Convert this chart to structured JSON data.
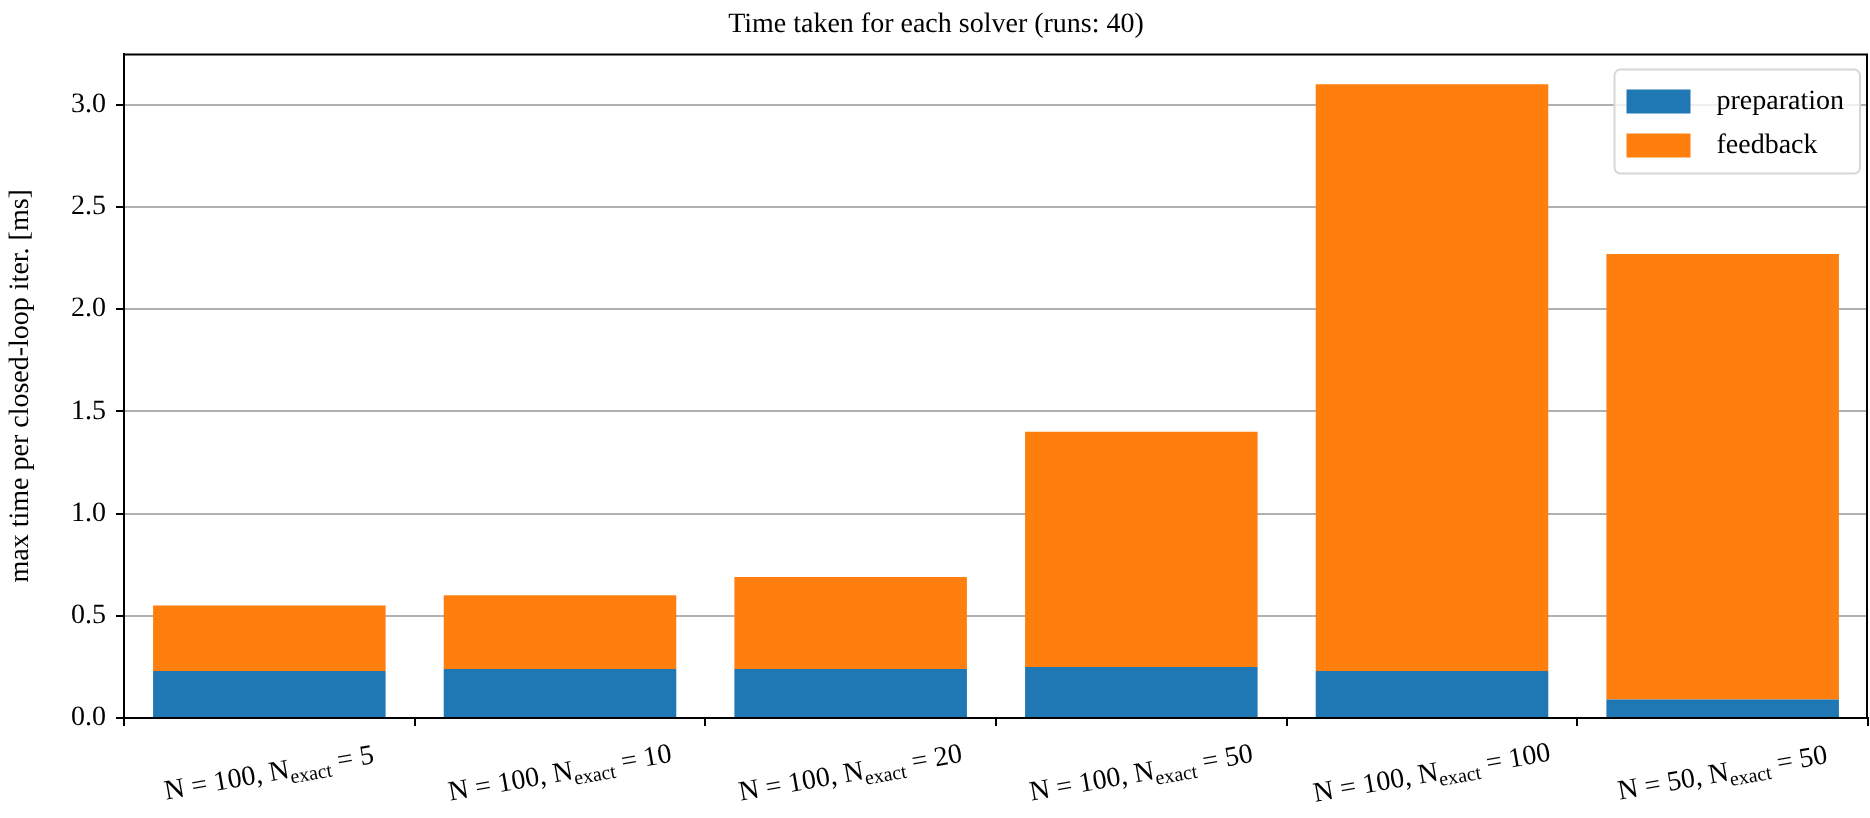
{
  "chart_data": {
    "type": "bar",
    "title": "Time taken for each solver (runs: 40)",
    "ylabel": "max time per closed-loop iter. [ms]",
    "categories": [
      "N = 100, N$_{exact}$ = 5",
      "N = 100, N$_{exact}$ = 10",
      "N = 100, N$_{exact}$ = 20",
      "N = 100, N$_{exact}$ = 50",
      "N = 100, N$_{exact}$ = 100",
      "N = 50, N$_{exact}$ = 50"
    ],
    "series": [
      {
        "name": "preparation",
        "color": "#1f77b4",
        "values": [
          0.23,
          0.24,
          0.24,
          0.25,
          0.23,
          0.09
        ]
      },
      {
        "name": "feedback",
        "color": "#ff7f0e",
        "values": [
          0.32,
          0.36,
          0.45,
          1.15,
          2.87,
          2.18
        ]
      }
    ],
    "stacked": true,
    "ylim": [
      0,
      3.25
    ],
    "yticks": [
      {
        "value": 0,
        "label": "0.0"
      },
      0.5,
      {
        "value": 1,
        "label": "1.0"
      },
      1.5,
      {
        "value": 2,
        "label": "2.0"
      },
      2.5,
      {
        "value": 3,
        "label": "3.0"
      }
    ],
    "grid": "y",
    "legend": "top right"
  }
}
